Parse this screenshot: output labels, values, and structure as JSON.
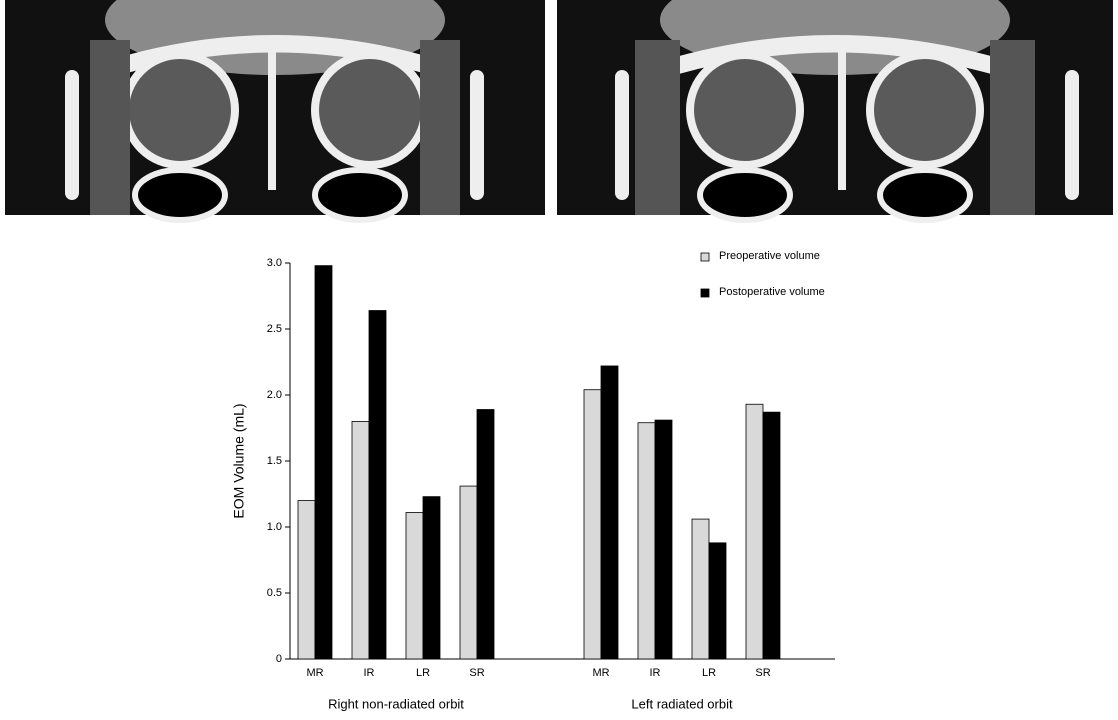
{
  "chart_data": {
    "type": "bar",
    "ylabel": "EOM Volume (mL)",
    "ylim": [
      0,
      3
    ],
    "yticks": [
      0,
      0.5,
      {
        "value": 1,
        "label": "1.0"
      },
      1.5,
      {
        "value": 2,
        "label": "2.0"
      },
      2.5,
      {
        "value": 3,
        "label": "3.0"
      }
    ],
    "series": [
      {
        "name": "Preoperative volume",
        "color": "#d9d9d9"
      },
      {
        "name": "Postoperative volume",
        "color": "#000000"
      }
    ],
    "groups": [
      {
        "label": "Right non-radiated orbit",
        "categories": [
          "MR",
          "IR",
          "LR",
          "SR"
        ],
        "series": [
          {
            "values": [
              1.2,
              1.8,
              1.11,
              1.31
            ]
          },
          {
            "values": [
              2.98,
              2.64,
              1.23,
              1.89
            ]
          }
        ]
      },
      {
        "label": "Left radiated orbit",
        "categories": [
          "MR",
          "IR",
          "LR",
          "SR"
        ],
        "series": [
          {
            "values": [
              2.04,
              1.79,
              1.06,
              1.93
            ]
          },
          {
            "values": [
              2.22,
              1.81,
              0.88,
              1.87
            ]
          }
        ]
      }
    ]
  }
}
